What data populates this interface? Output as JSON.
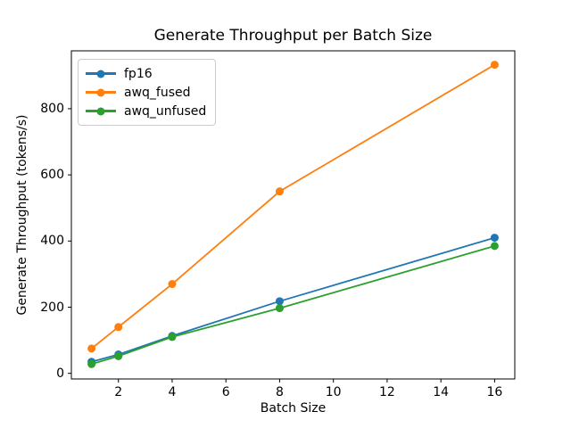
{
  "chart_data": {
    "type": "line",
    "title": "Generate Throughput per Batch Size",
    "xlabel": "Batch Size",
    "ylabel": "Generate Throughput (tokens/s)",
    "x": [
      1,
      2,
      4,
      8,
      16
    ],
    "series": [
      {
        "name": "fp16",
        "color": "#1f77b4",
        "values": [
          35,
          57,
          113,
          218,
          410
        ]
      },
      {
        "name": "awq_fused",
        "color": "#ff7f0e",
        "values": [
          75,
          140,
          270,
          550,
          933
        ]
      },
      {
        "name": "awq_unfused",
        "color": "#2ca02c",
        "values": [
          28,
          52,
          110,
          197,
          385
        ]
      }
    ],
    "xticks": [
      2,
      4,
      6,
      8,
      10,
      12,
      14,
      16
    ],
    "yticks": [
      0,
      200,
      400,
      600,
      800
    ],
    "xlim": [
      0.25,
      16.75
    ],
    "ylim": [
      -17,
      975
    ],
    "grid": false,
    "legend_position": "upper left",
    "marker": "o",
    "background_color": "#ffffff",
    "axis_color": "#000000"
  }
}
